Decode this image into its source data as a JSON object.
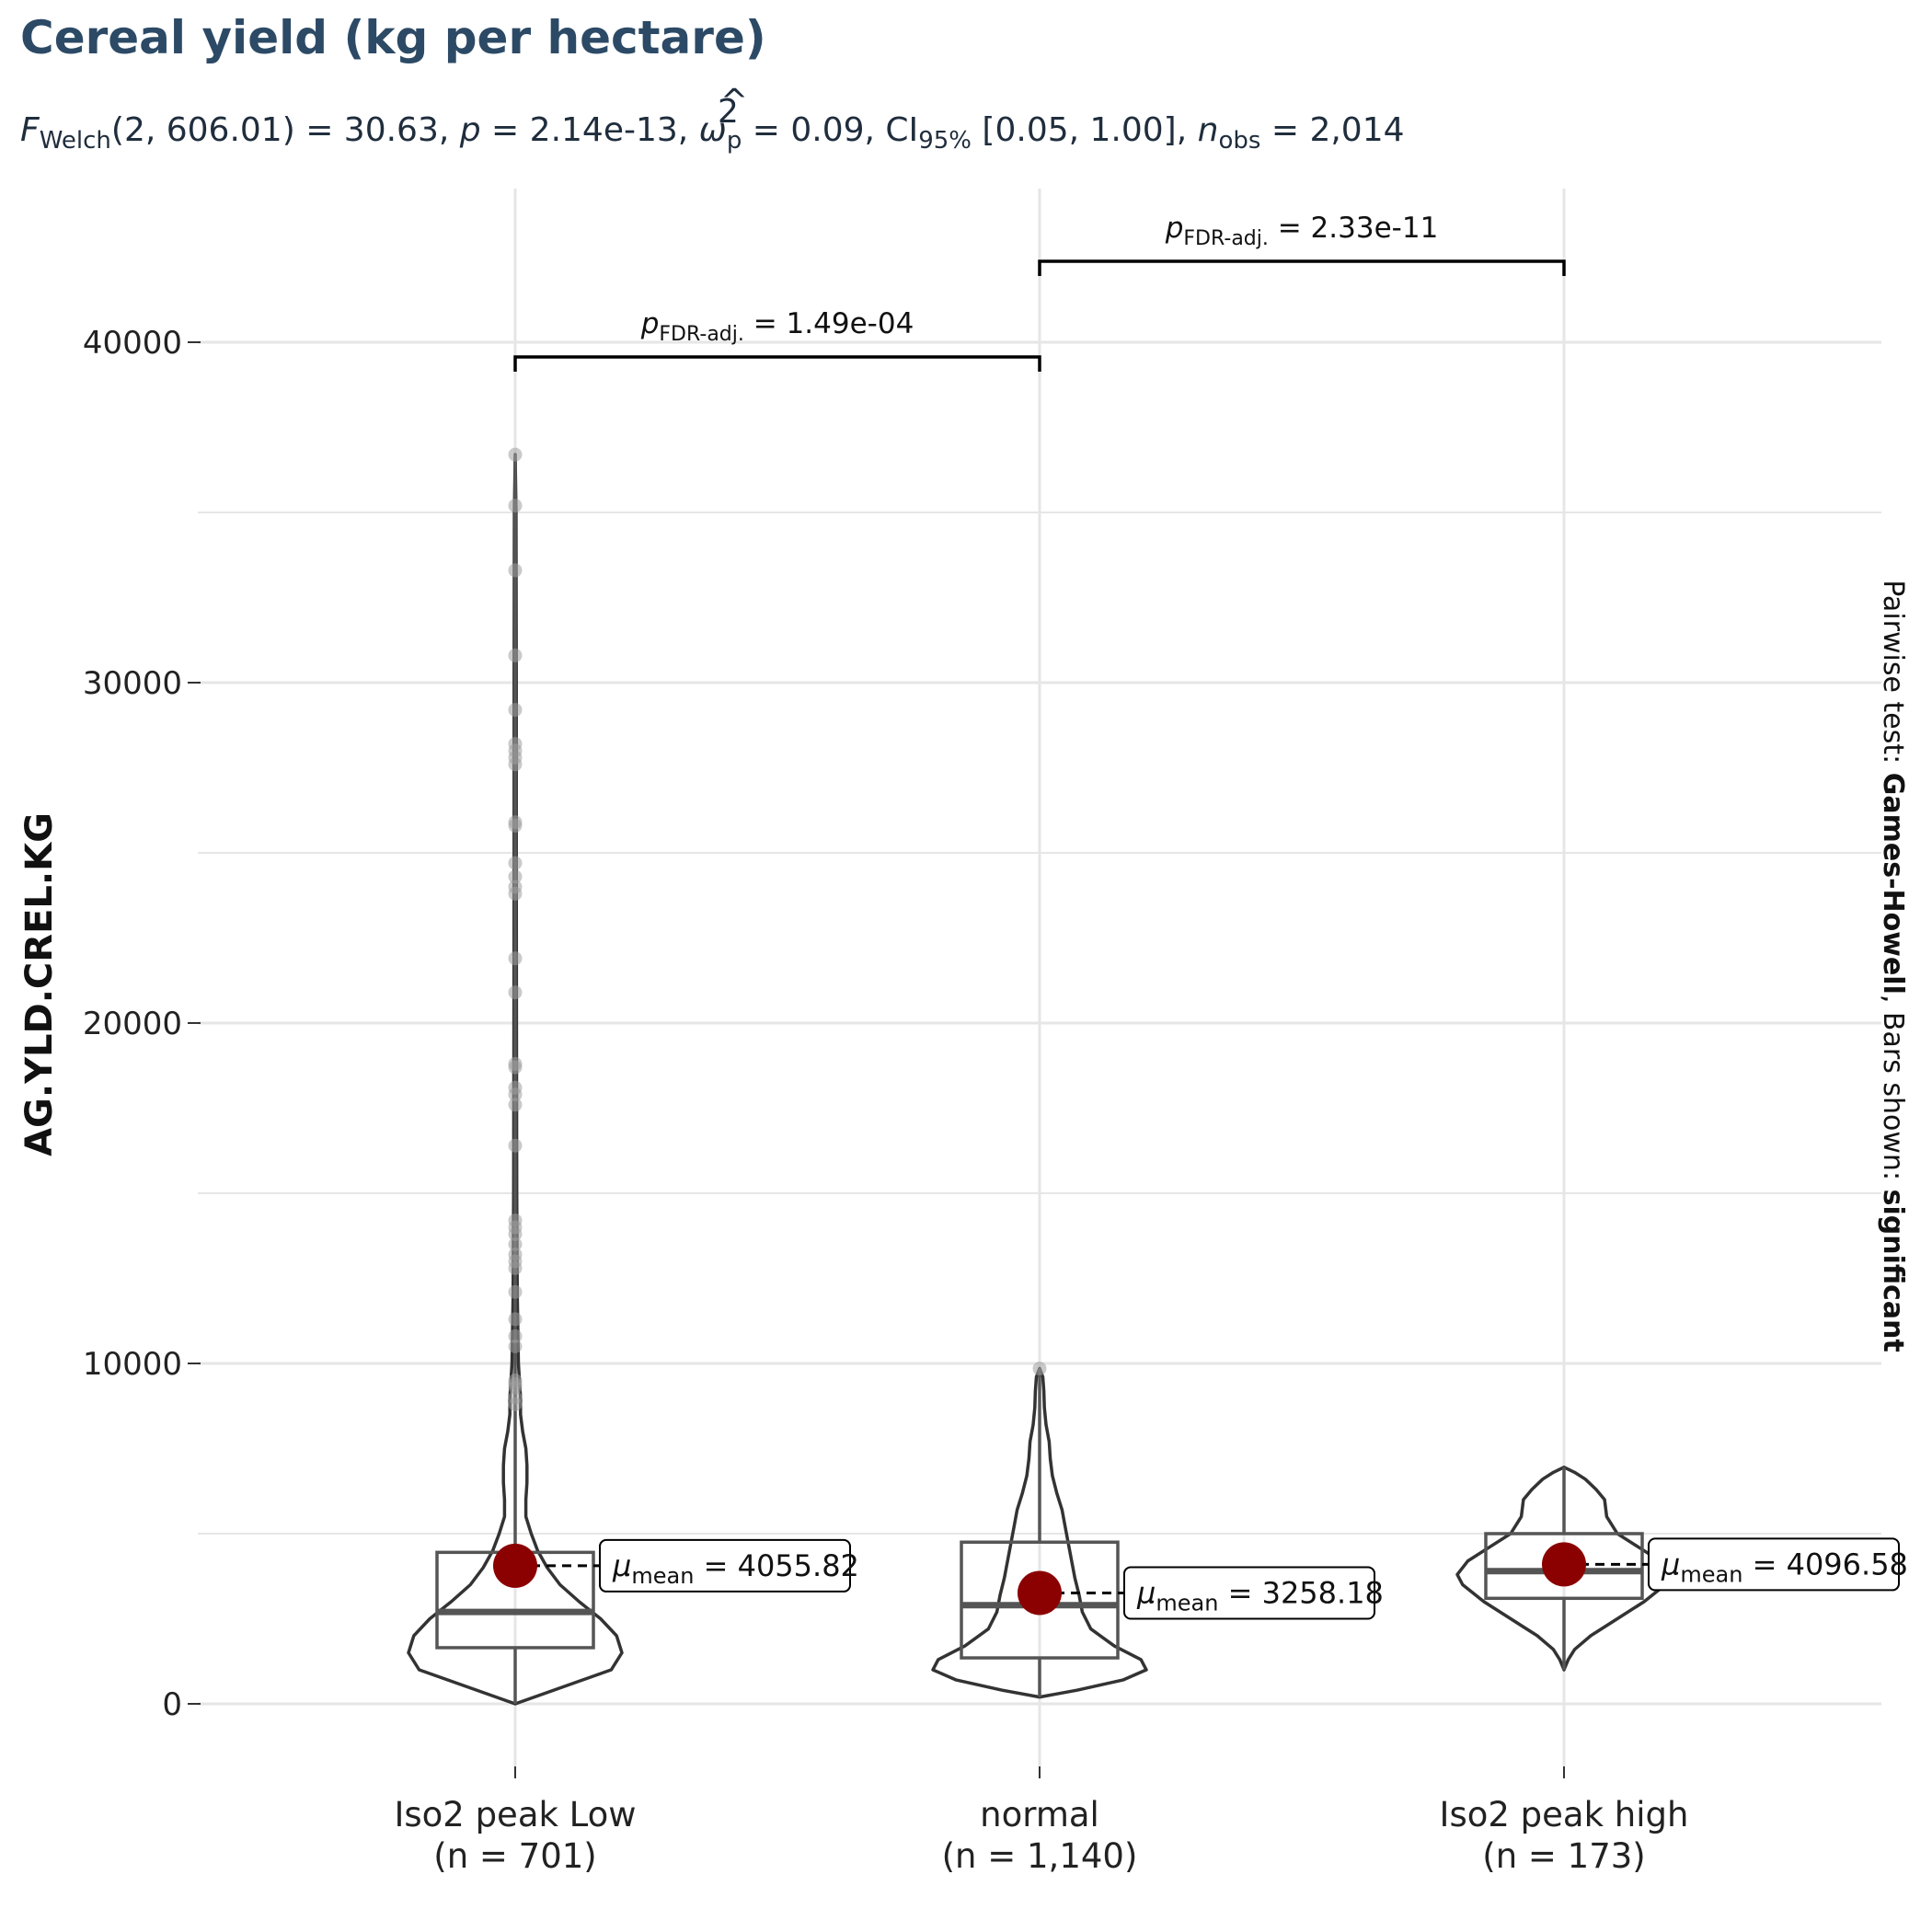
{
  "title": "Cereal yield (kg per hectare)",
  "subtitle": {
    "f_symbol": "F",
    "f_sub": "Welch",
    "f_args": "(2, 606.01) = 30.63, ",
    "p_symbol": "p",
    "p_text": " = 2.14e-13, ",
    "omega_hat": "^",
    "omega_sup": "2",
    "omega_symbol": "ω",
    "omega_sub": "p",
    "omega_text": " = 0.09, CI",
    "ci_sub": "95%",
    "ci_text": " [0.05, 1.00], ",
    "n_symbol": "n",
    "n_sub": "obs",
    "n_text": " = 2,014"
  },
  "caption": {
    "prefix": "Pairwise test: ",
    "test_name": "Games-Howell",
    "middle": ", Bars shown: ",
    "shown": "significant"
  },
  "colors": {
    "title": "#2c4a66",
    "grid": "#e6e6e6",
    "violin": "#333333",
    "box": "#555555",
    "median": "#555555",
    "outlier_point": "#9e9e9e",
    "mean_point": "#8b0000"
  },
  "chart_data": {
    "type": "violin-box",
    "ylabel": "AG.YLD.CREL.KG",
    "xlabel": "",
    "ylim": [
      -2000,
      44000
    ],
    "y_ticks": [
      0,
      10000,
      20000,
      30000,
      40000
    ],
    "y_tick_labels": [
      "0",
      "10000",
      "20000",
      "30000",
      "40000"
    ],
    "grid": true,
    "groups": [
      {
        "label_line1": "Iso2 peak  Low",
        "label_line2": "(n = 701)",
        "mean": 4055.82,
        "mean_sym": "μ",
        "mean_sub": "mean",
        "mean_text": " = 4055.82",
        "box": {
          "q1": 1650,
          "median": 2700,
          "q3": 4450,
          "whisker_low": 0,
          "whisker_high": 36700
        },
        "violin": [
          [
            0,
            0.0
          ],
          [
            500,
            0.45
          ],
          [
            1000,
            0.9
          ],
          [
            1500,
            1.0
          ],
          [
            2000,
            0.95
          ],
          [
            2500,
            0.8
          ],
          [
            3000,
            0.6
          ],
          [
            3500,
            0.42
          ],
          [
            4000,
            0.3
          ],
          [
            4500,
            0.21
          ],
          [
            5000,
            0.15
          ],
          [
            5500,
            0.1
          ],
          [
            6000,
            0.1
          ],
          [
            6500,
            0.11
          ],
          [
            7000,
            0.11
          ],
          [
            7500,
            0.1
          ],
          [
            8000,
            0.07
          ],
          [
            8500,
            0.05
          ],
          [
            9000,
            0.05
          ],
          [
            9500,
            0.04
          ],
          [
            10000,
            0.03
          ],
          [
            12000,
            0.02
          ],
          [
            15000,
            0.015
          ],
          [
            20000,
            0.012
          ],
          [
            25000,
            0.01
          ],
          [
            30000,
            0.01
          ],
          [
            35000,
            0.008
          ],
          [
            36700,
            0.0
          ]
        ],
        "outliers": [
          36700,
          35200,
          33300,
          30800,
          29200,
          28200,
          28000,
          27800,
          27600,
          25900,
          25800,
          24700,
          24300,
          24000,
          23800,
          21900,
          20900,
          18800,
          18700,
          18100,
          17900,
          17600,
          16400,
          14200,
          14000,
          13800,
          13500,
          13200,
          13000,
          12800,
          12100,
          11300,
          10800,
          10500,
          9500,
          9400,
          9300,
          9000,
          8800
        ]
      },
      {
        "label_line1": "normal",
        "label_line2": "(n = 1,140)",
        "mean": 3258.18,
        "mean_sym": "μ",
        "mean_sub": "mean",
        "mean_text": " = 3258.18",
        "box": {
          "q1": 1350,
          "median": 2900,
          "q3": 4750,
          "whisker_low": 200,
          "whisker_high": 9850
        },
        "violin": [
          [
            200,
            0.0
          ],
          [
            400,
            0.35
          ],
          [
            700,
            0.78
          ],
          [
            1000,
            1.0
          ],
          [
            1300,
            0.95
          ],
          [
            1700,
            0.7
          ],
          [
            2200,
            0.48
          ],
          [
            2700,
            0.4
          ],
          [
            3200,
            0.37
          ],
          [
            3700,
            0.33
          ],
          [
            4200,
            0.3
          ],
          [
            4700,
            0.27
          ],
          [
            5200,
            0.24
          ],
          [
            5700,
            0.21
          ],
          [
            6200,
            0.16
          ],
          [
            6700,
            0.12
          ],
          [
            7200,
            0.1
          ],
          [
            7700,
            0.09
          ],
          [
            8200,
            0.06
          ],
          [
            8700,
            0.045
          ],
          [
            9200,
            0.04
          ],
          [
            9600,
            0.03
          ],
          [
            9850,
            0.0
          ]
        ],
        "outliers": [
          9850
        ]
      },
      {
        "label_line1": "Iso2 peak  high",
        "label_line2": "(n = 173)",
        "mean": 4096.58,
        "mean_sym": "μ",
        "mean_sub": "mean",
        "mean_text": " = 4096.58",
        "box": {
          "q1": 3100,
          "median": 3900,
          "q3": 5000,
          "whisker_low": 1000,
          "whisker_high": 6950
        },
        "violin": [
          [
            1000,
            0.0
          ],
          [
            1300,
            0.04
          ],
          [
            1600,
            0.1
          ],
          [
            2000,
            0.25
          ],
          [
            2500,
            0.5
          ],
          [
            3000,
            0.75
          ],
          [
            3500,
            0.95
          ],
          [
            3800,
            1.0
          ],
          [
            4200,
            0.9
          ],
          [
            4600,
            0.7
          ],
          [
            5000,
            0.5
          ],
          [
            5500,
            0.4
          ],
          [
            6000,
            0.38
          ],
          [
            6300,
            0.3
          ],
          [
            6600,
            0.2
          ],
          [
            6800,
            0.1
          ],
          [
            6950,
            0.0
          ]
        ]
      }
    ],
    "comparisons": [
      {
        "group1": 0,
        "group2": 1,
        "level": 0,
        "p_symbol": "p",
        "p_sub": "FDR-adj.",
        "p_text": " = 1.49e-04"
      },
      {
        "group1": 1,
        "group2": 2,
        "level": 1,
        "p_symbol": "p",
        "p_sub": "FDR-adj.",
        "p_text": " = 2.33e-11"
      }
    ]
  }
}
